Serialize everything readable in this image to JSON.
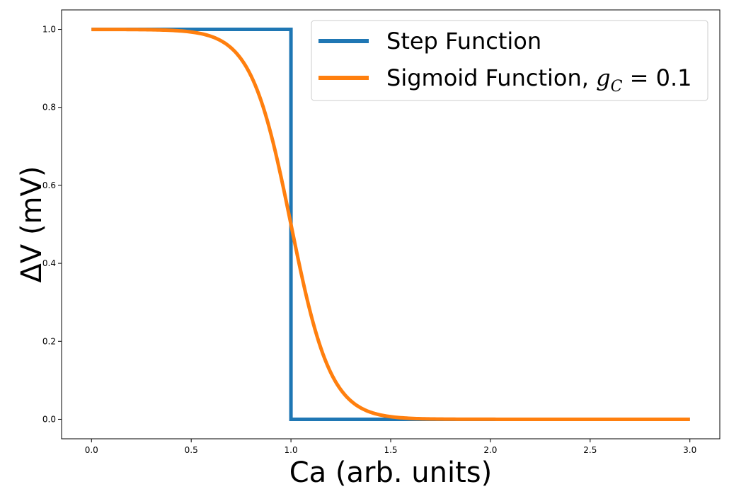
{
  "chart_data": {
    "type": "line",
    "title": "",
    "xlabel": "Ca (arb. units)",
    "ylabel": "ΔV (mV)",
    "xlim": [
      -0.15,
      3.15
    ],
    "ylim": [
      -0.05,
      1.05
    ],
    "xticks": [
      0.0,
      0.5,
      1.0,
      1.5,
      2.0,
      2.5,
      3.0
    ],
    "xtick_labels": [
      "0.0",
      "0.5",
      "1.0",
      "1.5",
      "2.0",
      "2.5",
      "3.0"
    ],
    "yticks": [
      0.0,
      0.2,
      0.4,
      0.6,
      0.8,
      1.0
    ],
    "ytick_labels": [
      "0.0",
      "0.2",
      "0.4",
      "0.6",
      "0.8",
      "1.0"
    ],
    "grid": false,
    "legend_position": "top-right",
    "series": [
      {
        "name": "Step Function",
        "color": "#1f77b4",
        "x": [
          0.0,
          1.0,
          1.0,
          3.0
        ],
        "y": [
          1.0,
          1.0,
          0.0,
          0.0
        ]
      },
      {
        "name_prefix": "Sigmoid Function, ",
        "name_math_symbol": "g",
        "name_math_subscript": "C",
        "name_math_rest": " = 0.1",
        "color": "#ff7f0e",
        "x": [
          0.0,
          0.2,
          0.4,
          0.5,
          0.6,
          0.7,
          0.8,
          0.9,
          1.0,
          1.1,
          1.2,
          1.3,
          1.4,
          1.5,
          1.6,
          1.7,
          2.0,
          2.5,
          3.0
        ],
        "y": [
          1.0,
          0.9997,
          0.9975,
          0.9933,
          0.982,
          0.9526,
          0.8808,
          0.7311,
          0.5,
          0.2689,
          0.1192,
          0.0474,
          0.018,
          0.0067,
          0.0025,
          0.0009,
          0.0,
          0.0,
          0.0
        ]
      }
    ]
  }
}
